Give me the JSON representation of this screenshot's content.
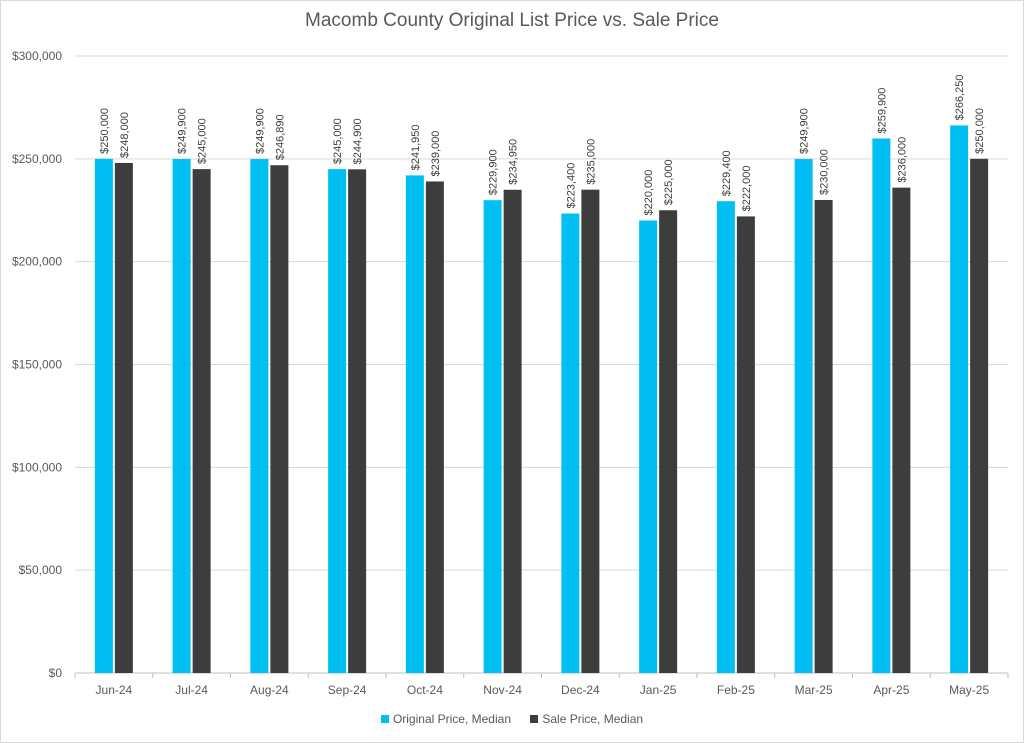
{
  "chart_data": {
    "type": "bar",
    "title": "Macomb County Original List Price vs. Sale Price",
    "xlabel": "",
    "ylabel": "",
    "ylim": [
      0,
      300000
    ],
    "yticks": [
      "$0",
      "$50,000",
      "$100,000",
      "$150,000",
      "$200,000",
      "$250,000",
      "$300,000"
    ],
    "ytick_values": [
      0,
      50000,
      100000,
      150000,
      200000,
      250000,
      300000
    ],
    "grid": true,
    "legend_position": "bottom",
    "categories": [
      "Jun-24",
      "Jul-24",
      "Aug-24",
      "Sep-24",
      "Oct-24",
      "Nov-24",
      "Dec-24",
      "Jan-25",
      "Feb-25",
      "Mar-25",
      "Apr-25",
      "May-25"
    ],
    "series": [
      {
        "name": "Original Price, Median",
        "color": "#00bff3",
        "values": [
          250000,
          249900,
          249900,
          245000,
          241950,
          229900,
          223400,
          220000,
          229400,
          249900,
          259900,
          266250
        ],
        "labels": [
          "$250,000",
          "$249,900",
          "$249,900",
          "$245,000",
          "$241,950",
          "$229,900",
          "$223,400",
          "$220,000",
          "$229,400",
          "$249,900",
          "$259,900",
          "$266,250"
        ]
      },
      {
        "name": "Sale Price, Median",
        "color": "#3d3d3d",
        "values": [
          248000,
          245000,
          246890,
          244900,
          239000,
          234950,
          235000,
          225000,
          222000,
          230000,
          236000,
          250000
        ],
        "labels": [
          "$248,000",
          "$245,000",
          "$246,890",
          "$244,900",
          "$239,000",
          "$234,950",
          "$235,000",
          "$225,000",
          "$222,000",
          "$230,000",
          "$236,000",
          "$250,000"
        ]
      }
    ]
  }
}
